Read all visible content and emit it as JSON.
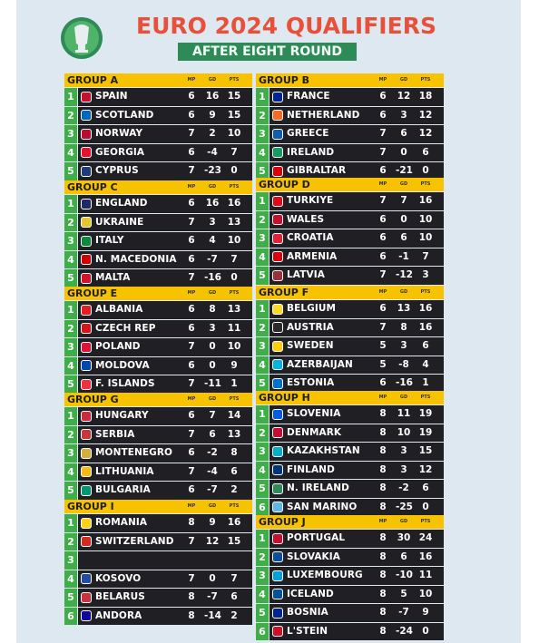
{
  "title": "EURO 2024 QUALIFIERS",
  "subtitle": "AFTER EIGHT ROUND",
  "stat_headers": [
    "MP",
    "GD",
    "PTS"
  ],
  "colors": {
    "accent": "#e8503a",
    "header_gold": "#f7c300",
    "rank_green": "#3fae49",
    "row_dark": "#1f1f24",
    "subtitle_green": "#2e8b57"
  },
  "groups": [
    {
      "name": "GROUP A",
      "teams": [
        {
          "rank": "1",
          "name": "SPAIN",
          "mp": "6",
          "gd": "16",
          "pts": "15",
          "flag": "#c8102e"
        },
        {
          "rank": "2",
          "name": "SCOTLAND",
          "mp": "6",
          "gd": "9",
          "pts": "15",
          "flag": "#0065bd"
        },
        {
          "rank": "3",
          "name": "NORWAY",
          "mp": "7",
          "gd": "2",
          "pts": "10",
          "flag": "#ba0c2f"
        },
        {
          "rank": "4",
          "name": "GEORGIA",
          "mp": "6",
          "gd": "-4",
          "pts": "7",
          "flag": "#e8112d"
        },
        {
          "rank": "5",
          "name": "CYPRUS",
          "mp": "7",
          "gd": "-23",
          "pts": "0",
          "flag": "#1e3d7a"
        }
      ]
    },
    {
      "name": "GROUP B",
      "teams": [
        {
          "rank": "1",
          "name": "FRANCE",
          "mp": "6",
          "gd": "12",
          "pts": "18",
          "flag": "#002395"
        },
        {
          "rank": "2",
          "name": "NETHERLAND",
          "mp": "6",
          "gd": "3",
          "pts": "12",
          "flag": "#f36c21"
        },
        {
          "rank": "3",
          "name": "GREECE",
          "mp": "7",
          "gd": "6",
          "pts": "12",
          "flag": "#0d5eaf"
        },
        {
          "rank": "4",
          "name": "IRELAND",
          "mp": "7",
          "gd": "0",
          "pts": "6",
          "flag": "#169b62"
        },
        {
          "rank": "5",
          "name": "GIBRALTAR",
          "mp": "6",
          "gd": "-21",
          "pts": "0",
          "flag": "#da000c"
        }
      ]
    },
    {
      "name": "GROUP C",
      "teams": [
        {
          "rank": "1",
          "name": "ENGLAND",
          "mp": "6",
          "gd": "16",
          "pts": "16",
          "flag": "#1c2a6b"
        },
        {
          "rank": "2",
          "name": "UKRAINE",
          "mp": "7",
          "gd": "3",
          "pts": "13",
          "flag": "#e6c62e"
        },
        {
          "rank": "3",
          "name": "ITALY",
          "mp": "6",
          "gd": "4",
          "pts": "10",
          "flag": "#0b8a3d"
        },
        {
          "rank": "4",
          "name": "N. MACEDONIA",
          "mp": "6",
          "gd": "-7",
          "pts": "7",
          "flag": "#d20000"
        },
        {
          "rank": "5",
          "name": "MALTA",
          "mp": "7",
          "gd": "-16",
          "pts": "0",
          "flag": "#cf142b"
        }
      ]
    },
    {
      "name": "GROUP D",
      "teams": [
        {
          "rank": "1",
          "name": "TURKIYE",
          "mp": "7",
          "gd": "7",
          "pts": "16",
          "flag": "#e30a17"
        },
        {
          "rank": "2",
          "name": "WALES",
          "mp": "6",
          "gd": "0",
          "pts": "10",
          "flag": "#c8102e"
        },
        {
          "rank": "3",
          "name": "CROATIA",
          "mp": "6",
          "gd": "6",
          "pts": "10",
          "flag": "#e0233a"
        },
        {
          "rank": "4",
          "name": "ARMENIA",
          "mp": "6",
          "gd": "-1",
          "pts": "7",
          "flag": "#d90012"
        },
        {
          "rank": "5",
          "name": "LATVIA",
          "mp": "7",
          "gd": "-12",
          "pts": "3",
          "flag": "#9e3039"
        }
      ]
    },
    {
      "name": "GROUP E",
      "teams": [
        {
          "rank": "1",
          "name": "ALBANIA",
          "mp": "6",
          "gd": "8",
          "pts": "13",
          "flag": "#e41e20"
        },
        {
          "rank": "2",
          "name": "CZECH REP",
          "mp": "6",
          "gd": "3",
          "pts": "11",
          "flag": "#d7141a"
        },
        {
          "rank": "3",
          "name": "POLAND",
          "mp": "7",
          "gd": "0",
          "pts": "10",
          "flag": "#dc143c"
        },
        {
          "rank": "4",
          "name": "MOLDOVA",
          "mp": "6",
          "gd": "0",
          "pts": "9",
          "flag": "#0046ae"
        },
        {
          "rank": "5",
          "name": "F. ISLANDS",
          "mp": "7",
          "gd": "-11",
          "pts": "1",
          "flag": "#ef303e"
        }
      ]
    },
    {
      "name": "GROUP F",
      "teams": [
        {
          "rank": "1",
          "name": "BELGIUM",
          "mp": "6",
          "gd": "13",
          "pts": "16",
          "flag": "#fdda24"
        },
        {
          "rank": "2",
          "name": "AUSTRIA",
          "mp": "7",
          "gd": "8",
          "pts": "16",
          "flag": "#2b2b2b"
        },
        {
          "rank": "3",
          "name": "SWEDEN",
          "mp": "5",
          "gd": "3",
          "pts": "6",
          "flag": "#fecc02"
        },
        {
          "rank": "4",
          "name": "AZERBAIJAN",
          "mp": "5",
          "gd": "-8",
          "pts": "4",
          "flag": "#00b5e2"
        },
        {
          "rank": "5",
          "name": "ESTONIA",
          "mp": "6",
          "gd": "-16",
          "pts": "1",
          "flag": "#0072ce"
        }
      ]
    },
    {
      "name": "GROUP G",
      "teams": [
        {
          "rank": "1",
          "name": "HUNGARY",
          "mp": "6",
          "gd": "7",
          "pts": "14",
          "flag": "#cd2a3e"
        },
        {
          "rank": "2",
          "name": "SERBIA",
          "mp": "7",
          "gd": "6",
          "pts": "13",
          "flag": "#c6363c"
        },
        {
          "rank": "3",
          "name": "MONTENEGRO",
          "mp": "6",
          "gd": "-2",
          "pts": "8",
          "flag": "#d3ae3b"
        },
        {
          "rank": "4",
          "name": "LITHUANIA",
          "mp": "7",
          "gd": "-4",
          "pts": "6",
          "flag": "#fdb913"
        },
        {
          "rank": "5",
          "name": "BULGARIA",
          "mp": "6",
          "gd": "-7",
          "pts": "2",
          "flag": "#00966e"
        }
      ]
    },
    {
      "name": "GROUP H",
      "teams": [
        {
          "rank": "1",
          "name": "SLOVENIA",
          "mp": "8",
          "gd": "11",
          "pts": "19",
          "flag": "#005ce5"
        },
        {
          "rank": "2",
          "name": "DENMARK",
          "mp": "8",
          "gd": "10",
          "pts": "19",
          "flag": "#c60c30"
        },
        {
          "rank": "3",
          "name": "KAZAKHSTAN",
          "mp": "8",
          "gd": "3",
          "pts": "15",
          "flag": "#00afca"
        },
        {
          "rank": "4",
          "name": "FINLAND",
          "mp": "8",
          "gd": "3",
          "pts": "12",
          "flag": "#003580"
        },
        {
          "rank": "5",
          "name": "N. IRELAND",
          "mp": "8",
          "gd": "-2",
          "pts": "6",
          "flag": "#2e8b57"
        },
        {
          "rank": "6",
          "name": "SAN MARINO",
          "mp": "8",
          "gd": "-25",
          "pts": "0",
          "flag": "#5eb6e4"
        }
      ]
    },
    {
      "name": "GROUP I",
      "teams": [
        {
          "rank": "1",
          "name": "ROMANIA",
          "mp": "8",
          "gd": "9",
          "pts": "16",
          "flag": "#fcd116"
        },
        {
          "rank": "2",
          "name": "SWITZERLAND",
          "mp": "7",
          "gd": "12",
          "pts": "15",
          "flag": "#d52b1e"
        },
        {
          "rank": "3",
          "name": "",
          "mp": "",
          "gd": "",
          "pts": "",
          "flag": ""
        },
        {
          "rank": "4",
          "name": "KOSOVO",
          "mp": "7",
          "gd": "0",
          "pts": "7",
          "flag": "#244aa5"
        },
        {
          "rank": "5",
          "name": "BELARUS",
          "mp": "8",
          "gd": "-7",
          "pts": "6",
          "flag": "#c8313e"
        },
        {
          "rank": "6",
          "name": "ANDORA",
          "mp": "8",
          "gd": "-14",
          "pts": "2",
          "flag": "#10069f"
        }
      ]
    },
    {
      "name": "GROUP J",
      "teams": [
        {
          "rank": "1",
          "name": "PORTUGAL",
          "mp": "8",
          "gd": "30",
          "pts": "24",
          "flag": "#c8102e"
        },
        {
          "rank": "2",
          "name": "SLOVAKIA",
          "mp": "8",
          "gd": "6",
          "pts": "16",
          "flag": "#0b4ea2"
        },
        {
          "rank": "3",
          "name": "LUXEMBOURG",
          "mp": "8",
          "gd": "-10",
          "pts": "11",
          "flag": "#00a1de"
        },
        {
          "rank": "4",
          "name": "ICELAND",
          "mp": "8",
          "gd": "5",
          "pts": "10",
          "flag": "#02529c"
        },
        {
          "rank": "5",
          "name": "BOSNIA",
          "mp": "8",
          "gd": "-7",
          "pts": "9",
          "flag": "#002395"
        },
        {
          "rank": "6",
          "name": "L'STEIN",
          "mp": "8",
          "gd": "-24",
          "pts": "0",
          "flag": "#ce1126"
        }
      ]
    }
  ]
}
